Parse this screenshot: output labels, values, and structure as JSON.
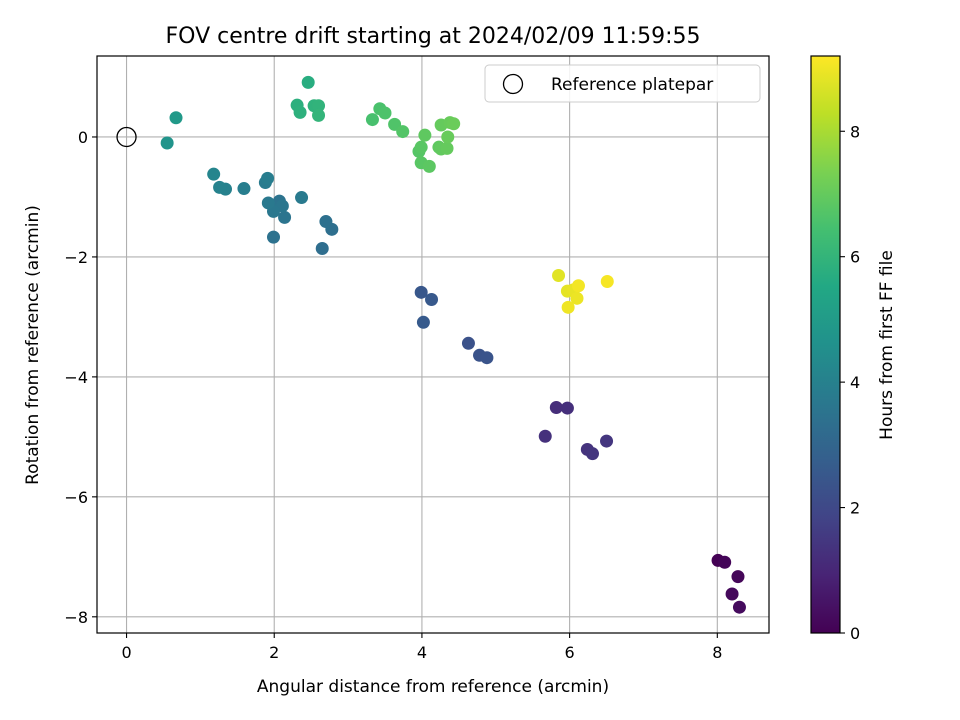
{
  "chart_data": {
    "type": "scatter",
    "title": "FOV centre drift starting at 2024/02/09 11:59:55",
    "xlabel": "Angular distance from reference (arcmin)",
    "ylabel": "Rotation from reference (arcmin)",
    "xlim": [
      -0.4,
      8.7
    ],
    "ylim": [
      -8.27,
      1.35
    ],
    "xticks": [
      0,
      2,
      4,
      6,
      8
    ],
    "yticks": [
      0,
      -2,
      -4,
      -6,
      -8
    ],
    "grid": true,
    "legend": {
      "position": "top-right",
      "entries": [
        "Reference platepar"
      ]
    },
    "reference_point": {
      "x": 0,
      "y": 0
    },
    "colorbar": {
      "label": "Hours from first FF file",
      "colormap": "viridis",
      "range": [
        0,
        9.2
      ],
      "ticks": [
        0,
        2,
        4,
        6,
        8
      ]
    },
    "points": [
      {
        "x": 8.01,
        "y": -7.06,
        "hours": 0.0
      },
      {
        "x": 8.1,
        "y": -7.09,
        "hours": 0.1
      },
      {
        "x": 8.28,
        "y": -7.33,
        "hours": 0.15
      },
      {
        "x": 8.2,
        "y": -7.62,
        "hours": 0.2
      },
      {
        "x": 8.3,
        "y": -7.84,
        "hours": 0.25
      },
      {
        "x": 5.82,
        "y": -4.51,
        "hours": 1.2
      },
      {
        "x": 5.97,
        "y": -4.52,
        "hours": 1.25
      },
      {
        "x": 5.67,
        "y": -4.99,
        "hours": 1.3
      },
      {
        "x": 6.24,
        "y": -5.21,
        "hours": 1.35
      },
      {
        "x": 6.31,
        "y": -5.28,
        "hours": 1.4
      },
      {
        "x": 6.5,
        "y": -5.07,
        "hours": 1.45
      },
      {
        "x": 4.63,
        "y": -3.44,
        "hours": 2.3
      },
      {
        "x": 4.78,
        "y": -3.64,
        "hours": 2.35
      },
      {
        "x": 4.88,
        "y": -3.68,
        "hours": 2.4
      },
      {
        "x": 3.99,
        "y": -2.59,
        "hours": 2.5
      },
      {
        "x": 4.13,
        "y": -2.71,
        "hours": 2.55
      },
      {
        "x": 4.02,
        "y": -3.09,
        "hours": 2.6
      },
      {
        "x": 2.65,
        "y": -1.86,
        "hours": 3.3
      },
      {
        "x": 2.78,
        "y": -1.54,
        "hours": 3.35
      },
      {
        "x": 2.7,
        "y": -1.41,
        "hours": 3.4
      },
      {
        "x": 1.99,
        "y": -1.67,
        "hours": 3.45
      },
      {
        "x": 2.07,
        "y": -1.07,
        "hours": 3.5
      },
      {
        "x": 2.14,
        "y": -1.34,
        "hours": 3.55
      },
      {
        "x": 2.11,
        "y": -1.15,
        "hours": 3.6
      },
      {
        "x": 1.99,
        "y": -1.24,
        "hours": 3.65
      },
      {
        "x": 1.92,
        "y": -1.1,
        "hours": 3.7
      },
      {
        "x": 2.37,
        "y": -1.01,
        "hours": 3.75
      },
      {
        "x": 1.88,
        "y": -0.76,
        "hours": 3.8
      },
      {
        "x": 1.91,
        "y": -0.69,
        "hours": 3.85
      },
      {
        "x": 1.59,
        "y": -0.86,
        "hours": 3.9
      },
      {
        "x": 1.34,
        "y": -0.87,
        "hours": 4.0
      },
      {
        "x": 1.26,
        "y": -0.84,
        "hours": 4.05
      },
      {
        "x": 1.18,
        "y": -0.62,
        "hours": 4.15
      },
      {
        "x": 0.55,
        "y": -0.1,
        "hours": 4.7
      },
      {
        "x": 0.67,
        "y": 0.32,
        "hours": 4.9
      },
      {
        "x": 2.46,
        "y": 0.91,
        "hours": 5.7
      },
      {
        "x": 2.31,
        "y": 0.53,
        "hours": 5.8
      },
      {
        "x": 2.35,
        "y": 0.41,
        "hours": 5.85
      },
      {
        "x": 2.54,
        "y": 0.52,
        "hours": 5.9
      },
      {
        "x": 2.6,
        "y": 0.52,
        "hours": 5.95
      },
      {
        "x": 2.6,
        "y": 0.36,
        "hours": 6.0
      },
      {
        "x": 3.33,
        "y": 0.29,
        "hours": 6.5
      },
      {
        "x": 3.43,
        "y": 0.47,
        "hours": 6.55
      },
      {
        "x": 3.5,
        "y": 0.4,
        "hours": 6.6
      },
      {
        "x": 3.63,
        "y": 0.21,
        "hours": 6.65
      },
      {
        "x": 3.74,
        "y": 0.09,
        "hours": 6.7
      },
      {
        "x": 3.96,
        "y": -0.24,
        "hours": 6.75
      },
      {
        "x": 3.99,
        "y": -0.17,
        "hours": 6.8
      },
      {
        "x": 3.99,
        "y": -0.43,
        "hours": 6.8
      },
      {
        "x": 4.1,
        "y": -0.49,
        "hours": 6.85
      },
      {
        "x": 4.04,
        "y": 0.03,
        "hours": 6.9
      },
      {
        "x": 4.23,
        "y": -0.17,
        "hours": 6.9
      },
      {
        "x": 4.26,
        "y": -0.2,
        "hours": 6.95
      },
      {
        "x": 4.26,
        "y": 0.2,
        "hours": 7.0
      },
      {
        "x": 4.34,
        "y": -0.19,
        "hours": 7.0
      },
      {
        "x": 4.35,
        "y": 0.0,
        "hours": 7.05
      },
      {
        "x": 4.38,
        "y": 0.24,
        "hours": 7.05
      },
      {
        "x": 4.43,
        "y": 0.22,
        "hours": 7.1
      },
      {
        "x": 5.85,
        "y": -2.31,
        "hours": 8.8
      },
      {
        "x": 5.97,
        "y": -2.57,
        "hours": 8.85
      },
      {
        "x": 6.05,
        "y": -2.55,
        "hours": 8.9
      },
      {
        "x": 6.1,
        "y": -2.69,
        "hours": 8.95
      },
      {
        "x": 5.98,
        "y": -2.84,
        "hours": 9.0
      },
      {
        "x": 6.12,
        "y": -2.48,
        "hours": 9.05
      },
      {
        "x": 6.51,
        "y": -2.41,
        "hours": 9.1
      }
    ]
  }
}
